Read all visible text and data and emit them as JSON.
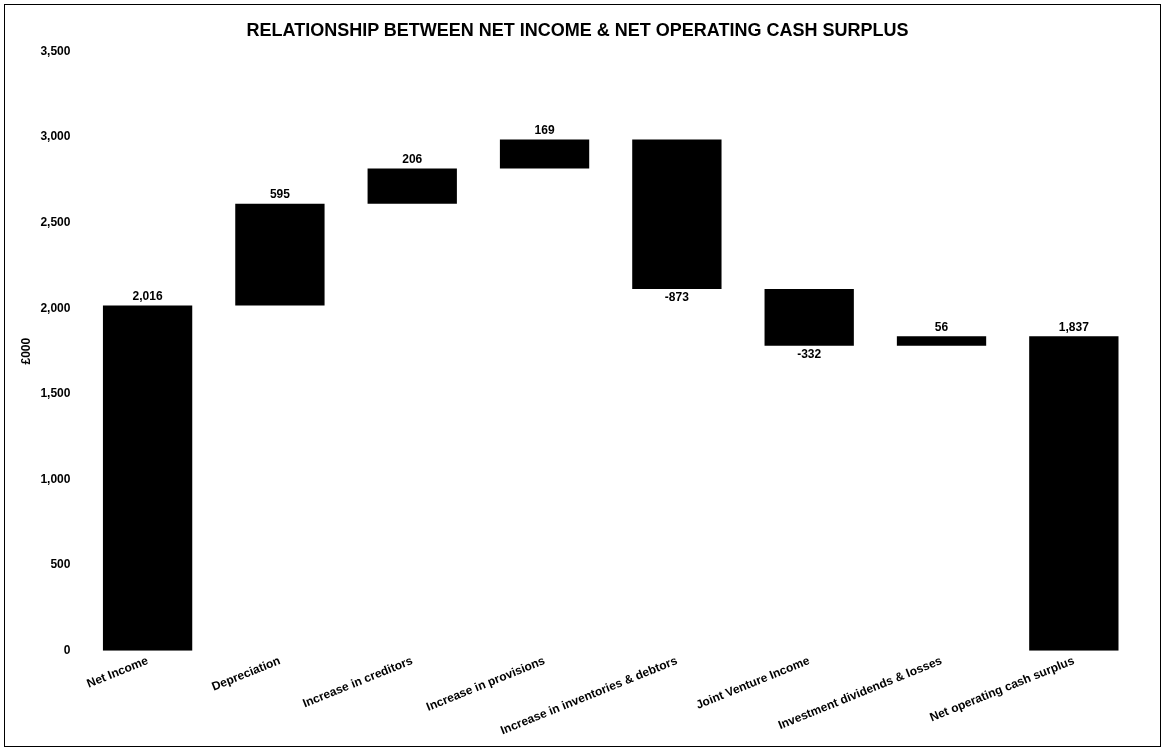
{
  "chart_data": {
    "type": "bar",
    "title": "RELATIONSHIP BETWEEN NET INCOME & NET OPERATING CASH SURPLUS",
    "ylabel": "£000",
    "categories": [
      "Net Income",
      "Depreciation",
      "Increase in creditors",
      "Increase in provisions",
      "Increase in inventories & debtors",
      "Joint Venture Income",
      "Investment dividends & losses",
      "Net operating cash surplus"
    ],
    "values": [
      2016,
      595,
      206,
      169,
      -873,
      -332,
      56,
      1837
    ],
    "base": [
      0,
      2016,
      2611,
      2817,
      2986,
      2113,
      1781,
      0
    ],
    "value_labels": [
      "2,016",
      "595",
      "206",
      "169",
      "-873",
      "-332",
      "56",
      "1,837"
    ],
    "color": "#000000",
    "ylim": [
      0,
      3500
    ],
    "yticks": [
      {
        "value": 0,
        "label": "0"
      },
      {
        "value": 500,
        "label": "500"
      },
      {
        "value": 1000,
        "label": "1,000"
      },
      {
        "value": 1500,
        "label": "1,500"
      },
      {
        "value": 2000,
        "label": "2,000"
      },
      {
        "value": 2500,
        "label": "2,500"
      },
      {
        "value": 3000,
        "label": "3,000"
      },
      {
        "value": 3500,
        "label": "3,500"
      }
    ],
    "grid": false,
    "legend": false
  }
}
